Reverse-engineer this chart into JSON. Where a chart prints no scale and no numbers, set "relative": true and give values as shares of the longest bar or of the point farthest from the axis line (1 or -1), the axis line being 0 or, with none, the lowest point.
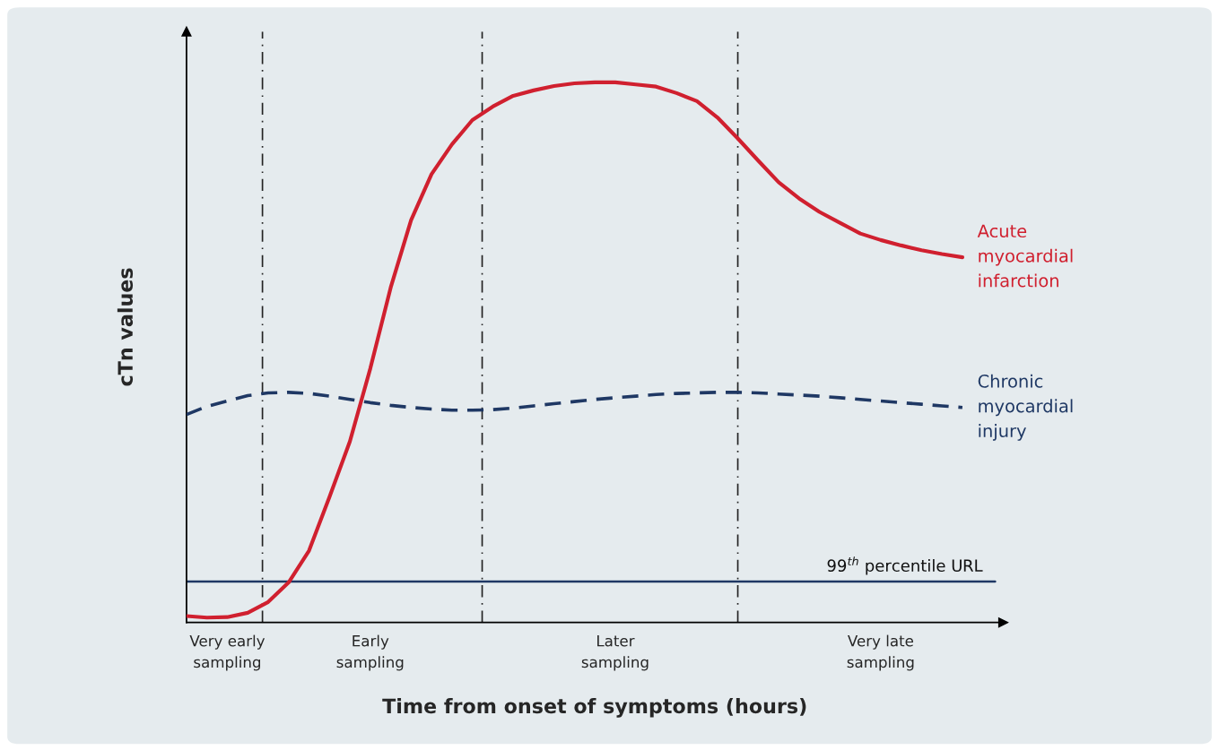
{
  "chart_data": {
    "type": "line",
    "relative": true,
    "xlabel": "Time from onset of symptoms (hours)",
    "ylabel": "cTn values",
    "categories": [
      null,
      null,
      "Very early\nsampling",
      null,
      null,
      null,
      null,
      null,
      null,
      "Early\nsampling",
      null,
      null,
      null,
      null,
      null,
      null,
      null,
      null,
      null,
      null,
      null,
      "Later\nsampling",
      null,
      null,
      null,
      null,
      null,
      null,
      null,
      null,
      null,
      null,
      null,
      null,
      "Very late\nsampling",
      null,
      null,
      null,
      null
    ],
    "tick_labels": "x",
    "series": [
      {
        "name": "Acute\nmyocardial\ninfarction",
        "color": "#d0202f",
        "line_style": "solid",
        "values": [
          0.012,
          0.009,
          0.01,
          0.018,
          0.038,
          0.074,
          0.133,
          0.232,
          0.335,
          0.47,
          0.62,
          0.745,
          0.83,
          0.885,
          0.93,
          0.955,
          0.975,
          0.985,
          0.993,
          0.998,
          1.0,
          1.0,
          0.996,
          0.992,
          0.98,
          0.965,
          0.935,
          0.896,
          0.855,
          0.815,
          0.785,
          0.76,
          0.74,
          0.72,
          0.708,
          0.698,
          0.689,
          0.682,
          0.676
        ]
      },
      {
        "name": "Chronic\nmyocardial\ninjury",
        "color": "#1f3864",
        "line_style": "dashed",
        "values": [
          0.385,
          0.4,
          0.41,
          0.42,
          0.425,
          0.426,
          0.424,
          0.419,
          0.413,
          0.407,
          0.402,
          0.398,
          0.395,
          0.393,
          0.393,
          0.394,
          0.397,
          0.401,
          0.405,
          0.409,
          0.413,
          0.416,
          0.419,
          0.422,
          0.424,
          0.425,
          0.426,
          0.426,
          0.425,
          0.423,
          0.421,
          0.419,
          0.416,
          0.413,
          0.41,
          0.407,
          0.404,
          0.401,
          0.398
        ]
      }
    ],
    "ref_lines": [
      {
        "axis": "y",
        "value": 0.076,
        "label": "99$^{th}$ percentile URL",
        "color": "#1f3864",
        "line_style": "solid"
      }
    ]
  }
}
